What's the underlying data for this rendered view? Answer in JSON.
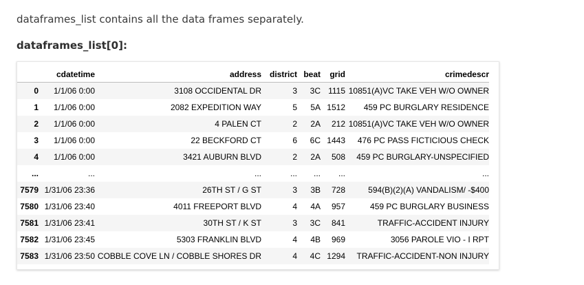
{
  "intro_text": "dataframes_list contains all the data frames separately.",
  "code_heading": "dataframes_list[0]:",
  "table": {
    "columns": [
      "",
      "cdatetime",
      "address",
      "district",
      "beat",
      "grid",
      "crimedescr"
    ],
    "rows": [
      [
        "0",
        "1/1/06 0:00",
        "3108 OCCIDENTAL DR",
        "3",
        "3C",
        "1115",
        "10851(A)VC TAKE VEH W/O OWNER"
      ],
      [
        "1",
        "1/1/06 0:00",
        "2082 EXPEDITION WAY",
        "5",
        "5A",
        "1512",
        "459 PC BURGLARY RESIDENCE"
      ],
      [
        "2",
        "1/1/06 0:00",
        "4 PALEN CT",
        "2",
        "2A",
        "212",
        "10851(A)VC TAKE VEH W/O OWNER"
      ],
      [
        "3",
        "1/1/06 0:00",
        "22 BECKFORD CT",
        "6",
        "6C",
        "1443",
        "476 PC PASS FICTICIOUS CHECK"
      ],
      [
        "4",
        "1/1/06 0:00",
        "3421 AUBURN BLVD",
        "2",
        "2A",
        "508",
        "459 PC BURGLARY-UNSPECIFIED"
      ],
      [
        "...",
        "...",
        "...",
        "...",
        "...",
        "...",
        "..."
      ],
      [
        "7579",
        "1/31/06 23:36",
        "26TH ST / G ST",
        "3",
        "3B",
        "728",
        "594(B)(2)(A) VANDALISM/ -$400"
      ],
      [
        "7580",
        "1/31/06 23:40",
        "4011 FREEPORT BLVD",
        "4",
        "4A",
        "957",
        "459 PC BURGLARY BUSINESS"
      ],
      [
        "7581",
        "1/31/06 23:41",
        "30TH ST / K ST",
        "3",
        "3C",
        "841",
        "TRAFFIC-ACCIDENT INJURY"
      ],
      [
        "7582",
        "1/31/06 23:45",
        "5303 FRANKLIN BLVD",
        "4",
        "4B",
        "969",
        "3056 PAROLE VIO - I RPT"
      ],
      [
        "7583",
        "1/31/06 23:50",
        "COBBLE COVE LN / COBBLE SHORES DR",
        "4",
        "4C",
        "1294",
        "TRAFFIC-ACCIDENT-NON INJURY"
      ]
    ]
  }
}
